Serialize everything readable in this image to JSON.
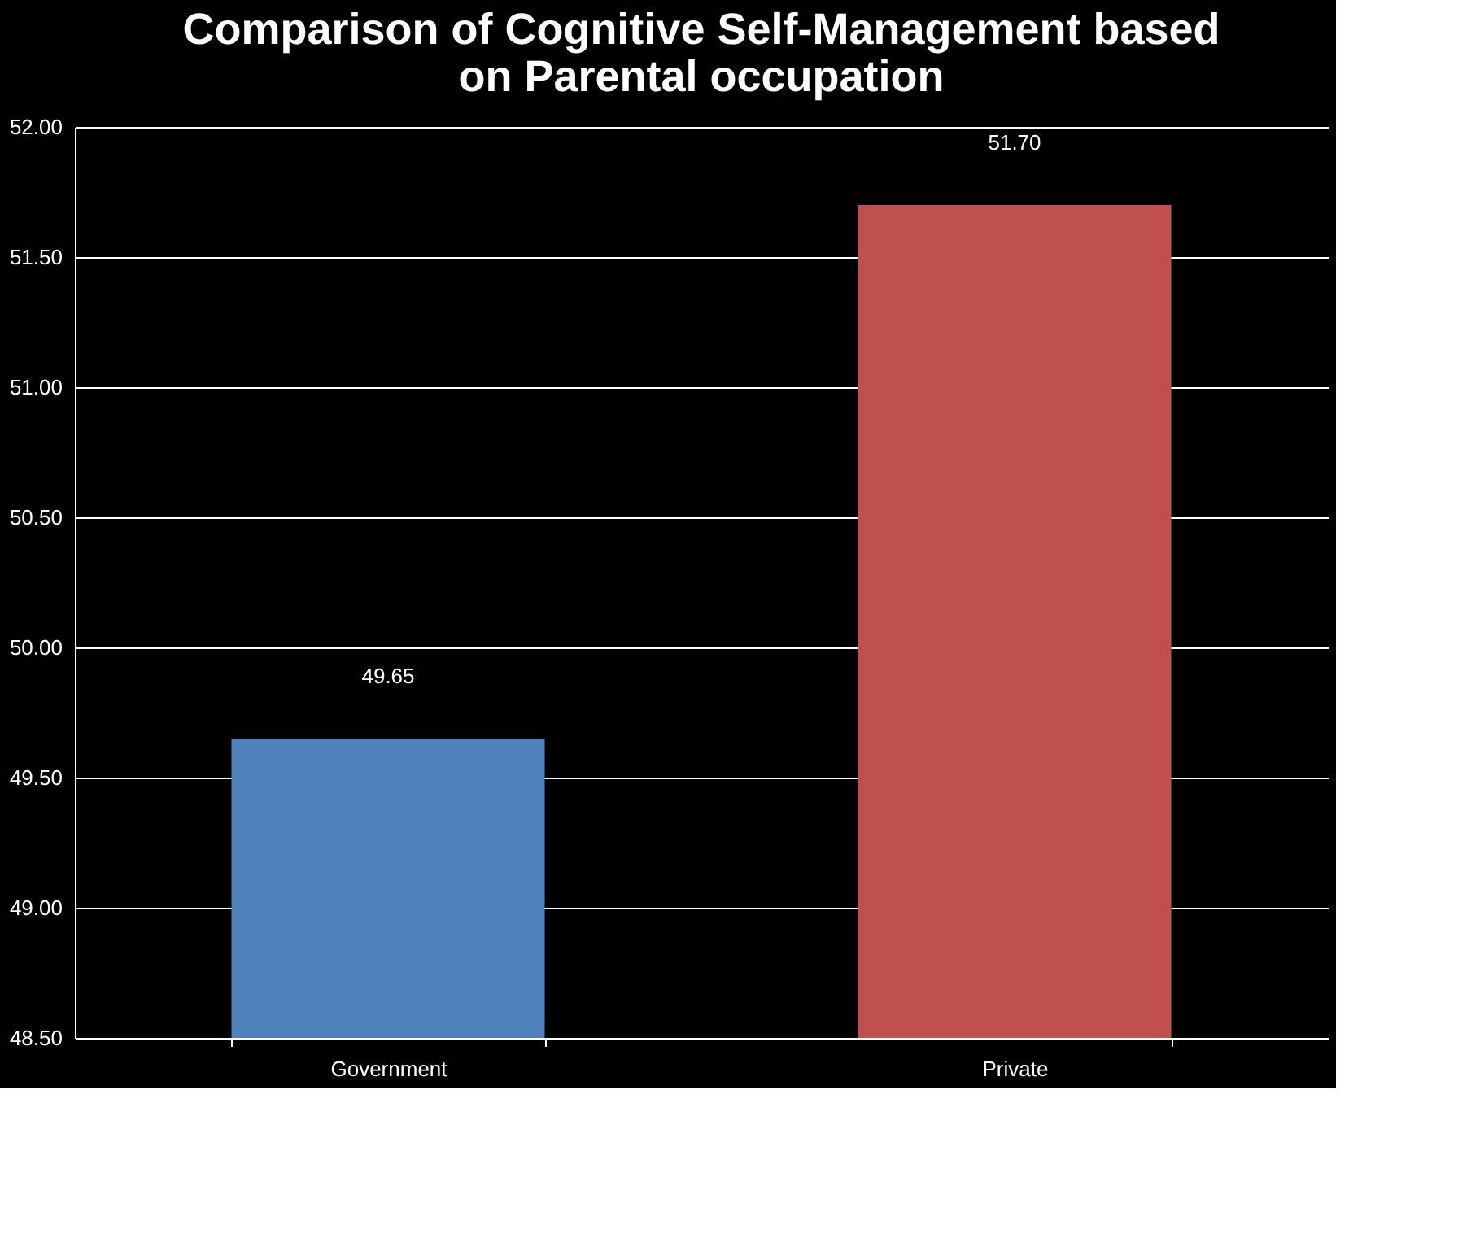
{
  "chart_data": {
    "type": "bar",
    "title": [
      "Comparison of Cognitive Self-Management based",
      "on Parental occupation"
    ],
    "categories": [
      "Government",
      "Private"
    ],
    "values": [
      49.65,
      51.7
    ],
    "colors": [
      "#4f81bd",
      "#c0504d"
    ],
    "value_labels": [
      "49.65",
      "51.70"
    ],
    "ylim": [
      48.5,
      52
    ],
    "yticks": [
      {
        "value": 48.5,
        "label": "48.50"
      },
      {
        "value": 49,
        "label": "49.00"
      },
      {
        "value": 49.5,
        "label": "49.50"
      },
      {
        "value": 50,
        "label": "50.00"
      },
      {
        "value": 50.5,
        "label": "50.50"
      },
      {
        "value": 51,
        "label": "51.00"
      },
      {
        "value": 51.5,
        "label": "51.50"
      },
      {
        "value": 52,
        "label": "52.00"
      }
    ],
    "grid": "y"
  }
}
